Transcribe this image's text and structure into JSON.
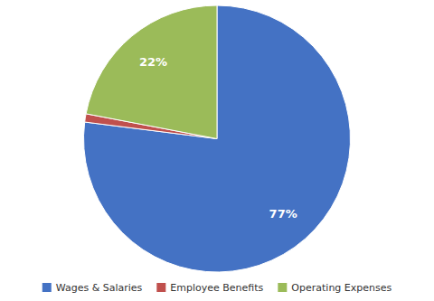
{
  "chart_data": {
    "type": "pie",
    "categories": [
      "Wages & Salaries",
      "Employee Benefits",
      "Operating Expenses"
    ],
    "values": [
      77,
      1,
      22
    ],
    "colors": [
      "#4472C4",
      "#C0504D",
      "#9BBB59"
    ],
    "data_labels": true,
    "value_labels": [
      "77%",
      null,
      "22%"
    ],
    "legend": "bottom"
  }
}
